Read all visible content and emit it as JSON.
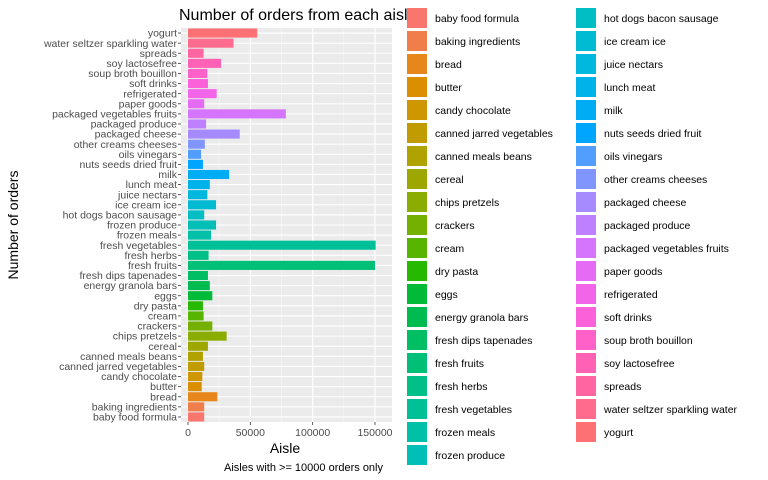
{
  "chart_data": {
    "type": "bar",
    "orientation": "horizontal",
    "title": "Number of orders from each aisle",
    "xlabel": "Aisle",
    "ylabel": "Number of orders",
    "caption": "Aisles with >= 10000 orders only",
    "xlim": [
      0,
      155000
    ],
    "xticks": [
      0,
      50000,
      100000,
      150000
    ],
    "xtick_labels": [
      "0",
      "50000",
      "100000",
      "150000"
    ],
    "grid": true,
    "background": "#ebebeb",
    "legend_position": "right",
    "categories": [
      "baby food formula",
      "baking ingredients",
      "bread",
      "butter",
      "candy chocolate",
      "canned jarred vegetables",
      "canned meals beans",
      "cereal",
      "chips pretzels",
      "crackers",
      "cream",
      "dry pasta",
      "eggs",
      "energy granola bars",
      "fresh dips tapenades",
      "fresh fruits",
      "fresh herbs",
      "fresh vegetables",
      "frozen meals",
      "frozen produce",
      "hot dogs bacon sausage",
      "ice cream ice",
      "juice nectars",
      "lunch meat",
      "milk",
      "nuts seeds dried fruit",
      "oils vinegars",
      "other creams cheeses",
      "packaged cheese",
      "packaged produce",
      "packaged vegetables fruits",
      "paper goods",
      "refrigerated",
      "soft drinks",
      "soup broth bouillon",
      "soy lactosefree",
      "spreads",
      "water seltzer sparkling water",
      "yogurt"
    ],
    "values": [
      13000,
      13000,
      23500,
      11000,
      11500,
      13000,
      12000,
      16000,
      31000,
      19500,
      12500,
      12000,
      19500,
      17500,
      16000,
      150000,
      16500,
      150500,
      18500,
      22500,
      13000,
      22500,
      15500,
      17500,
      33000,
      12000,
      10500,
      13500,
      41500,
      14500,
      78500,
      13000,
      23000,
      16000,
      15500,
      26500,
      12500,
      36500,
      55500
    ],
    "colors": [
      "#F8766D",
      "#F07E4B",
      "#E7861B",
      "#DB8E00",
      "#CE9600",
      "#C09C00",
      "#B0A200",
      "#9EA700",
      "#8BAC00",
      "#74B000",
      "#57B400",
      "#27B800",
      "#00BA38",
      "#00BC50",
      "#00BE64",
      "#00BF76",
      "#00C087",
      "#00C097",
      "#00C0A7",
      "#00BFB6",
      "#00BEC4",
      "#00BBD2",
      "#00B7DE",
      "#00B2EA",
      "#00ACF4",
      "#00A5FF",
      "#529EFF",
      "#8195FF",
      "#A58BFF",
      "#BF80FF",
      "#D575FE",
      "#E66BF4",
      "#F265E8",
      "#FB61D8",
      "#FF61C8",
      "#FF62B5",
      "#FF66A1",
      "#FF6B8C",
      "#FD7175"
    ]
  }
}
